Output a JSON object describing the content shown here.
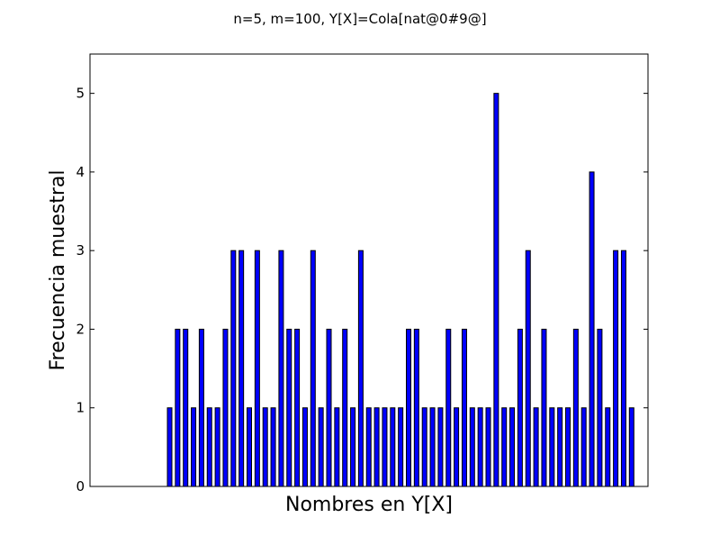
{
  "chart_data": {
    "type": "bar",
    "title": "n=5, m=100, Y[X]=Cola[nat@0#9@]",
    "xlabel": "Nombres en Y[X]",
    "ylabel": "Frecuencia muestral",
    "ylim": [
      0,
      5.5
    ],
    "yticks": [
      0,
      1,
      2,
      3,
      4,
      5
    ],
    "xticks": [],
    "grid": false,
    "legend": "none",
    "bar_color": "#0000ff",
    "bar_edge_color": "#000000",
    "series": [
      {
        "values": [
          1,
          2,
          2,
          1,
          2,
          1,
          1,
          2,
          3,
          3,
          1,
          3,
          1,
          1,
          3,
          2,
          2,
          1,
          3,
          1,
          2,
          1,
          2,
          1,
          3,
          1,
          1,
          1,
          1,
          1,
          2,
          2,
          1,
          1,
          1,
          2,
          1,
          2,
          1,
          1,
          1,
          5,
          1,
          1,
          2,
          3,
          1,
          2,
          1,
          1,
          1,
          2,
          1,
          4,
          2,
          1,
          3,
          3,
          1
        ]
      }
    ]
  }
}
